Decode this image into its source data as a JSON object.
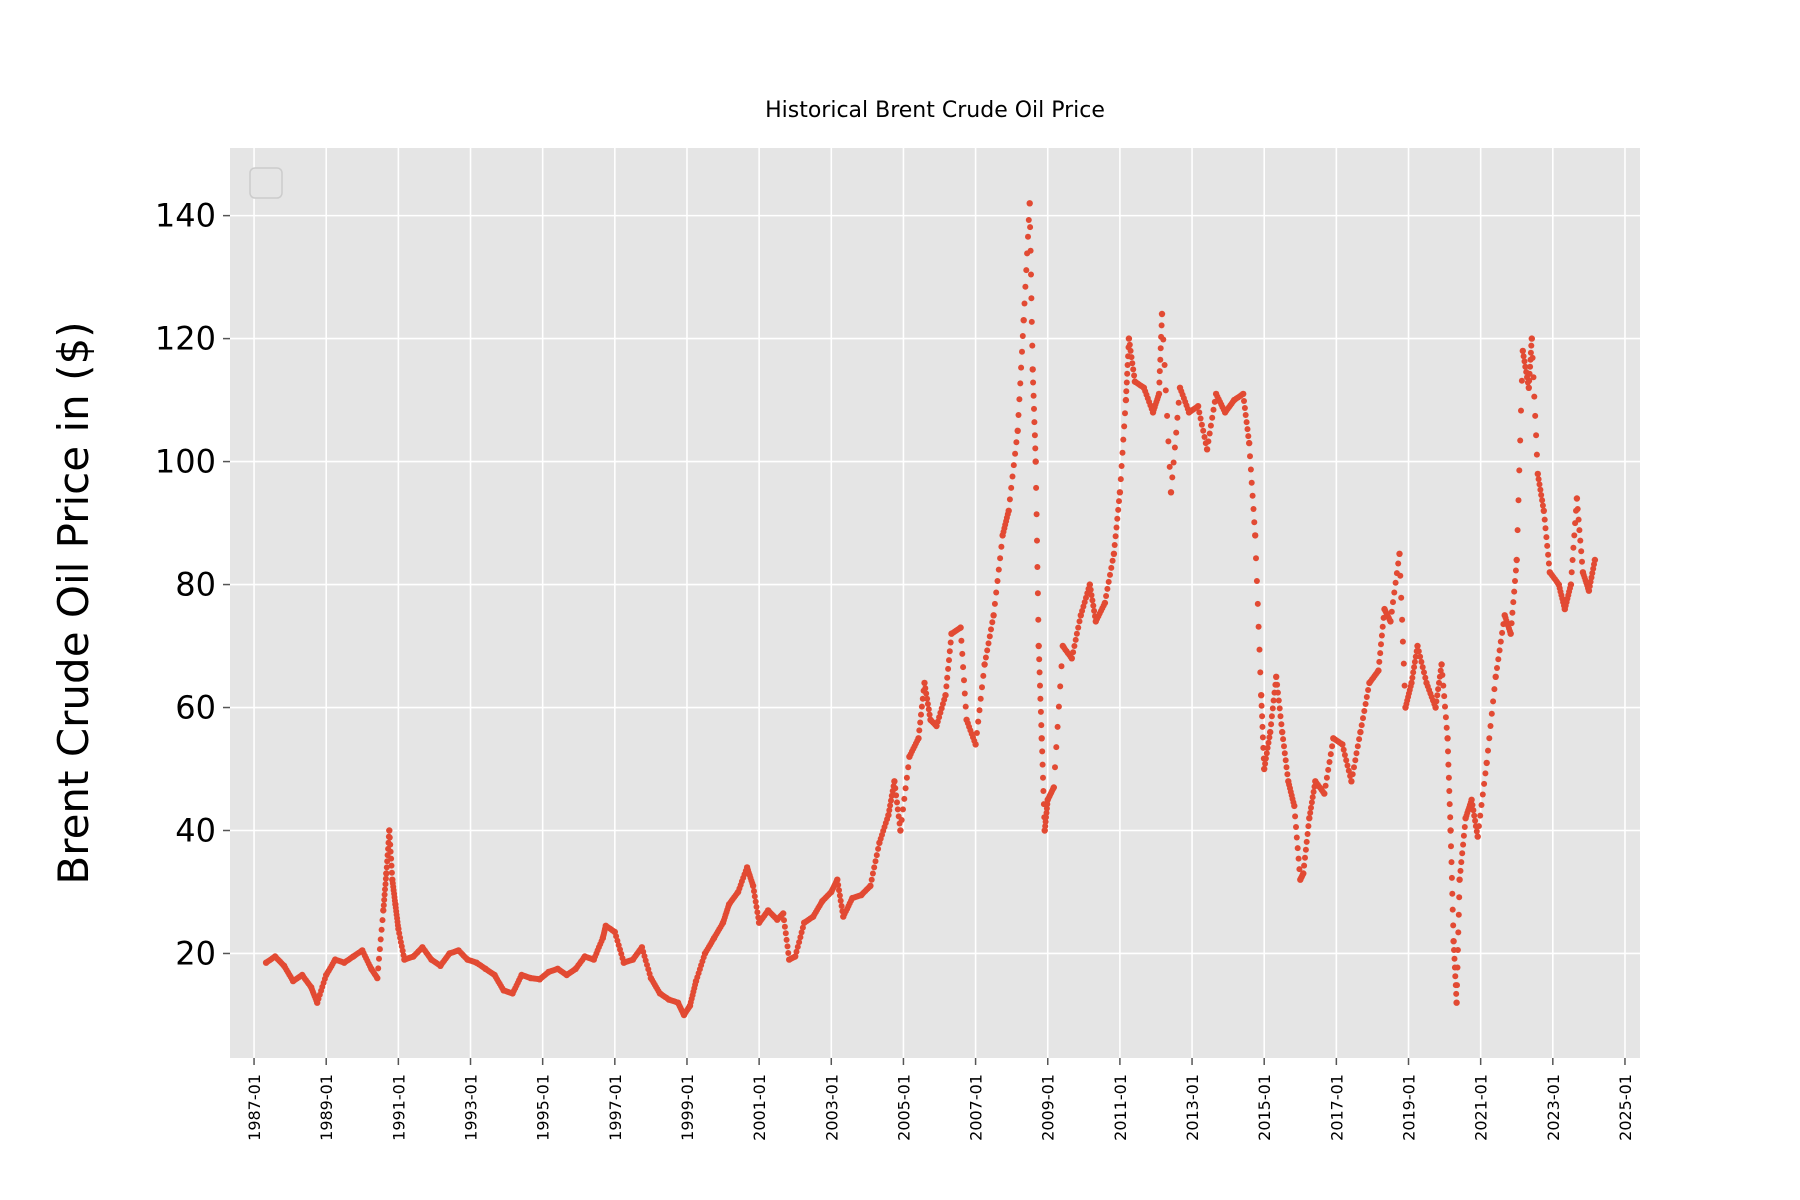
{
  "chart_data": {
    "type": "scatter",
    "title": "Historical Brent Crude Oil Price",
    "xlabel": "",
    "ylabel": "Brent Crude Oil Price in ($)",
    "xlim": [
      "1986-05",
      "2025-06"
    ],
    "ylim": [
      3,
      151
    ],
    "x_ticks": [
      "1987-01",
      "1989-01",
      "1991-01",
      "1993-01",
      "1995-01",
      "1997-01",
      "1999-01",
      "2001-01",
      "2003-01",
      "2005-01",
      "2007-01",
      "2009-01",
      "2011-01",
      "2013-01",
      "2015-01",
      "2017-01",
      "2019-01",
      "2021-01",
      "2023-01",
      "2025-01"
    ],
    "y_ticks": [
      20,
      40,
      60,
      80,
      100,
      120,
      140
    ],
    "grid": true,
    "legend": "top-left (empty)",
    "colors": {
      "series": "#E24A33",
      "background": "#E5E5E5",
      "grid": "#FFFFFF"
    },
    "series": [
      {
        "x": [
          "1987-05",
          "1987-08",
          "1987-11",
          "1988-02",
          "1988-05",
          "1988-08",
          "1988-10",
          "1989-01",
          "1989-04",
          "1989-07",
          "1989-10",
          "1990-01",
          "1990-04",
          "1990-06",
          "1990-08",
          "1990-09",
          "1990-10",
          "1990-11",
          "1990-12",
          "1991-01",
          "1991-03",
          "1991-06",
          "1991-09",
          "1991-12",
          "1992-03",
          "1992-06",
          "1992-09",
          "1992-12",
          "1993-03",
          "1993-06",
          "1993-09",
          "1993-12",
          "1994-03",
          "1994-06",
          "1994-09",
          "1994-12",
          "1995-03",
          "1995-06",
          "1995-09",
          "1995-12",
          "1996-03",
          "1996-06",
          "1996-09",
          "1996-10",
          "1997-01",
          "1997-04",
          "1997-07",
          "1997-10",
          "1998-01",
          "1998-04",
          "1998-07",
          "1998-10",
          "1998-12",
          "1999-02",
          "1999-04",
          "1999-07",
          "1999-10",
          "2000-01",
          "2000-03",
          "2000-06",
          "2000-09",
          "2000-11",
          "2001-01",
          "2001-04",
          "2001-07",
          "2001-09",
          "2001-11",
          "2002-01",
          "2002-04",
          "2002-07",
          "2002-10",
          "2003-01",
          "2003-03",
          "2003-05",
          "2003-08",
          "2003-11",
          "2004-02",
          "2004-05",
          "2004-08",
          "2004-10",
          "2004-12",
          "2005-03",
          "2005-06",
          "2005-08",
          "2005-10",
          "2005-12",
          "2006-03",
          "2006-05",
          "2006-08",
          "2006-10",
          "2007-01",
          "2007-04",
          "2007-07",
          "2007-10",
          "2007-12",
          "2008-03",
          "2008-05",
          "2008-07",
          "2008-08",
          "2008-09",
          "2008-10",
          "2008-11",
          "2008-12",
          "2009-01",
          "2009-03",
          "2009-06",
          "2009-09",
          "2009-12",
          "2010-03",
          "2010-05",
          "2010-08",
          "2010-11",
          "2011-01",
          "2011-03",
          "2011-04",
          "2011-06",
          "2011-09",
          "2011-12",
          "2012-02",
          "2012-03",
          "2012-06",
          "2012-09",
          "2012-12",
          "2013-03",
          "2013-06",
          "2013-09",
          "2013-12",
          "2014-03",
          "2014-06",
          "2014-08",
          "2014-10",
          "2014-12",
          "2015-01",
          "2015-03",
          "2015-05",
          "2015-07",
          "2015-09",
          "2015-11",
          "2016-01",
          "2016-02",
          "2016-04",
          "2016-06",
          "2016-09",
          "2016-12",
          "2017-03",
          "2017-06",
          "2017-09",
          "2017-12",
          "2018-03",
          "2018-05",
          "2018-07",
          "2018-10",
          "2018-12",
          "2019-02",
          "2019-04",
          "2019-07",
          "2019-10",
          "2019-12",
          "2020-02",
          "2020-03",
          "2020-04",
          "2020-05",
          "2020-06",
          "2020-08",
          "2020-10",
          "2020-12",
          "2021-03",
          "2021-06",
          "2021-09",
          "2021-11",
          "2022-01",
          "2022-03",
          "2022-05",
          "2022-06",
          "2022-08",
          "2022-10",
          "2022-12",
          "2023-03",
          "2023-05",
          "2023-07",
          "2023-09",
          "2023-11",
          "2024-01",
          "2024-03"
        ],
        "y": [
          18.5,
          19.5,
          18.0,
          15.5,
          16.5,
          14.5,
          12.0,
          16.5,
          19.0,
          18.5,
          19.5,
          20.5,
          17.5,
          16.0,
          27.0,
          33.0,
          40.0,
          32.0,
          28.0,
          24.0,
          19.0,
          19.5,
          21.0,
          19.0,
          18.0,
          20.0,
          20.5,
          19.0,
          18.5,
          17.5,
          16.5,
          14.0,
          13.5,
          16.5,
          16.0,
          15.8,
          17.0,
          17.5,
          16.5,
          17.5,
          19.5,
          19.0,
          22.5,
          24.5,
          23.5,
          18.5,
          19.0,
          21.0,
          16.0,
          13.5,
          12.5,
          12.0,
          10.0,
          11.5,
          15.5,
          20.0,
          22.5,
          25.0,
          28.0,
          30.0,
          34.0,
          31.0,
          25.0,
          27.0,
          25.5,
          26.5,
          19.0,
          19.5,
          25.0,
          26.0,
          28.5,
          30.0,
          32.0,
          26.0,
          29.0,
          29.5,
          31.0,
          38.0,
          42.5,
          48.0,
          40.0,
          52.0,
          55.0,
          64.0,
          58.0,
          57.0,
          62.0,
          72.0,
          73.0,
          58.0,
          54.0,
          67.0,
          75.0,
          88.0,
          92.0,
          105.0,
          123.0,
          142.0,
          115.0,
          100.0,
          70.0,
          55.0,
          40.0,
          45.0,
          47.0,
          70.0,
          68.0,
          75.0,
          80.0,
          74.0,
          77.0,
          85.0,
          95.0,
          110.0,
          120.0,
          113.0,
          112.0,
          108.0,
          111.0,
          124.0,
          95.0,
          112.0,
          108.0,
          109.0,
          102.0,
          111.0,
          108.0,
          110.0,
          111.0,
          103.0,
          88.0,
          62.0,
          50.0,
          56.0,
          65.0,
          56.0,
          48.0,
          44.0,
          32.0,
          33.0,
          42.0,
          48.0,
          46.0,
          55.0,
          54.0,
          48.0,
          56.0,
          64.0,
          66.0,
          76.0,
          74.0,
          85.0,
          60.0,
          64.0,
          70.0,
          64.0,
          60.0,
          67.0,
          55.0,
          40.0,
          22.0,
          12.0,
          32.0,
          42.0,
          45.0,
          39.0,
          51.0,
          65.0,
          75.0,
          72.0,
          84.0,
          118.0,
          112.0,
          120.0,
          98.0,
          92.0,
          82.0,
          80.0,
          76.0,
          80.0,
          94.0,
          82.0,
          79.0,
          84.0
        ]
      }
    ]
  }
}
